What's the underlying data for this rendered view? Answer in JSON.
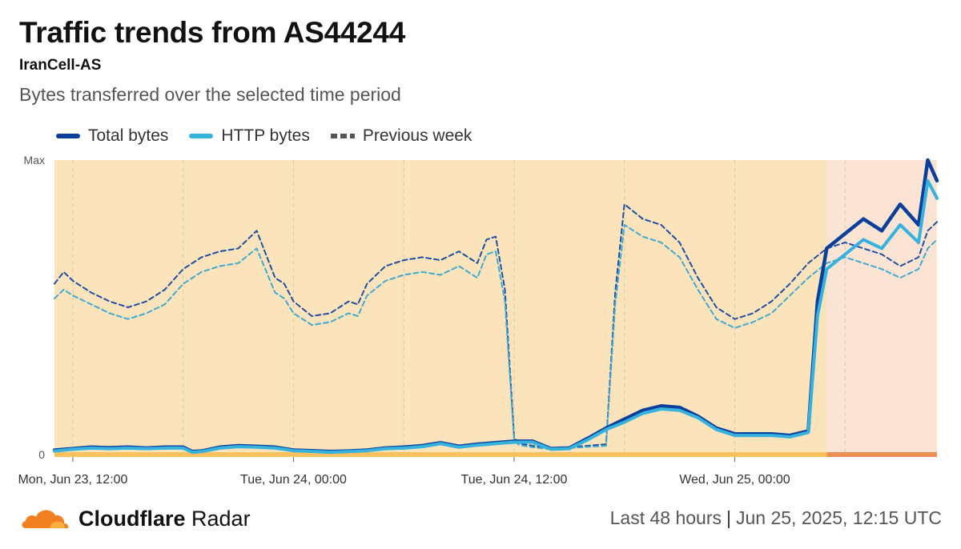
{
  "header": {
    "title": "Traffic trends from AS44244",
    "subtitle": "IranCell-AS",
    "description": "Bytes transferred over the selected time period"
  },
  "legend": [
    {
      "label": "Total bytes",
      "color": "#0a3f9c",
      "style": "solid"
    },
    {
      "label": "HTTP bytes",
      "color": "#35b2dd",
      "style": "solid"
    },
    {
      "label": "Previous week",
      "color": "#555555",
      "style": "dashed"
    }
  ],
  "footer": {
    "brand_bold": "Cloudflare",
    "brand_light": " Radar",
    "range": "Last 48 hours",
    "separator": "|",
    "timestamp": "Jun 25, 2025, 12:15 UTC"
  },
  "chart_data": {
    "type": "line",
    "title": "Traffic trends from AS44244",
    "ylabel": "",
    "y_tick_labels": [
      "Max",
      "0"
    ],
    "ylim": [
      0,
      100
    ],
    "x_tick_labels": [
      "Mon, Jun 23, 12:00",
      "Tue, Jun 24, 00:00",
      "Tue, Jun 24, 12:00",
      "Wed, Jun 25, 00:00"
    ],
    "x_tick_hours": [
      1,
      13,
      25,
      37
    ],
    "xlim_hours": [
      0,
      48
    ],
    "highlight_start_hour": 42,
    "colors": {
      "plot_bg": "#fbe3bc",
      "highlight_bg": "#fce4d5",
      "bottom_band": "#f8c35c",
      "bottom_band_highlight": "#ef8f55",
      "total": "#0a3f9c",
      "http": "#35b2dd",
      "prev_total": "#1e4fa3",
      "prev_http": "#3fa9cf"
    },
    "series": [
      {
        "name": "Total bytes",
        "x": [
          0,
          1,
          2,
          3,
          4,
          5,
          6,
          7,
          7.5,
          8,
          9,
          10,
          11,
          12,
          13,
          14,
          15,
          16,
          17,
          18,
          19,
          20,
          21,
          22,
          23,
          24,
          25,
          26,
          27,
          28,
          29,
          30,
          31,
          32,
          33,
          34,
          35,
          36,
          37,
          38,
          39,
          40,
          41,
          41.5,
          42,
          43,
          44,
          45,
          46,
          47,
          47.5,
          48
        ],
        "values": [
          1.5,
          2,
          2.5,
          2.3,
          2.5,
          2.2,
          2.5,
          2.5,
          1,
          1.2,
          2.5,
          3,
          2.8,
          2.5,
          1.5,
          1.3,
          1,
          1.2,
          1.5,
          2.2,
          2.5,
          3,
          4,
          2.8,
          3.5,
          4,
          4.5,
          4.5,
          2,
          2.2,
          5.5,
          9,
          12,
          15,
          16.5,
          16,
          13,
          9,
          7,
          7,
          7,
          6.5,
          8,
          52,
          70,
          75,
          80,
          76,
          85,
          78,
          100,
          93
        ]
      },
      {
        "name": "HTTP bytes",
        "x": [
          0,
          1,
          2,
          3,
          4,
          5,
          6,
          7,
          7.5,
          8,
          9,
          10,
          11,
          12,
          13,
          14,
          15,
          16,
          17,
          18,
          19,
          20,
          21,
          22,
          23,
          24,
          25,
          26,
          27,
          28,
          29,
          30,
          31,
          32,
          33,
          34,
          35,
          36,
          37,
          38,
          39,
          40,
          41,
          41.5,
          42,
          43,
          44,
          45,
          46,
          47,
          47.5,
          48
        ],
        "values": [
          1.2,
          1.8,
          2.2,
          2,
          2.2,
          2,
          2.2,
          2.2,
          0.8,
          1,
          2.2,
          2.7,
          2.5,
          2.2,
          1.3,
          1.1,
          0.8,
          1,
          1.3,
          2,
          2.2,
          2.7,
          3.7,
          2.5,
          3.2,
          3.7,
          4.2,
          4.2,
          1.8,
          2,
          5,
          8.5,
          11,
          14,
          15.5,
          15,
          12.5,
          8.5,
          6.5,
          6.5,
          6.5,
          6,
          7.5,
          47,
          63,
          68,
          73,
          70,
          78,
          72,
          93,
          87
        ]
      },
      {
        "name": "Previous week (Total bytes)",
        "x": [
          0,
          0.5,
          1,
          2,
          3,
          4,
          5,
          6,
          7,
          8,
          9,
          10,
          11,
          12,
          12.5,
          13,
          14,
          15,
          16,
          16.5,
          17,
          18,
          19,
          20,
          21,
          22,
          23,
          23.5,
          24,
          24.5,
          25,
          25.2,
          25.5,
          26,
          27,
          28,
          29,
          30,
          30.5,
          31,
          32,
          33,
          34,
          35,
          36,
          37,
          38,
          39,
          40,
          41,
          42,
          43,
          44,
          45,
          46,
          47,
          47.5,
          48
        ],
        "values": [
          58,
          62,
          59,
          55,
          52,
          50,
          52,
          56,
          63,
          67,
          69,
          70,
          76,
          60,
          58,
          52,
          47,
          48,
          52,
          51,
          58,
          64,
          66,
          67,
          66,
          69,
          65,
          73,
          74,
          56,
          6,
          4,
          3.5,
          3,
          2,
          2.5,
          3,
          3.5,
          55,
          85,
          80,
          78,
          72,
          60,
          50,
          46,
          48,
          52,
          58,
          65,
          70,
          72,
          70,
          68,
          64,
          67,
          76,
          79
        ]
      },
      {
        "name": "Previous week (HTTP bytes)",
        "x": [
          0,
          0.5,
          1,
          2,
          3,
          4,
          5,
          6,
          7,
          8,
          9,
          10,
          11,
          12,
          12.5,
          13,
          14,
          15,
          16,
          16.5,
          17,
          18,
          19,
          20,
          21,
          22,
          23,
          23.5,
          24,
          24.5,
          25,
          25.2,
          25.5,
          26,
          27,
          28,
          29,
          30,
          30.5,
          31,
          32,
          33,
          34,
          35,
          36,
          37,
          38,
          39,
          40,
          41,
          42,
          43,
          44,
          45,
          46,
          47,
          47.5,
          48
        ],
        "values": [
          53,
          56,
          54,
          51,
          48,
          46,
          48,
          51,
          58,
          62,
          64,
          65,
          70,
          55,
          53,
          48,
          44,
          45,
          48,
          47,
          54,
          59,
          61,
          62,
          61,
          64,
          60,
          68,
          69,
          52,
          5,
          3.5,
          3,
          2.5,
          1.8,
          2.2,
          2.6,
          3,
          51,
          78,
          74,
          72,
          67,
          56,
          46,
          43,
          45,
          48,
          54,
          60,
          65,
          67,
          65,
          63,
          60,
          63,
          70,
          73
        ]
      }
    ]
  }
}
